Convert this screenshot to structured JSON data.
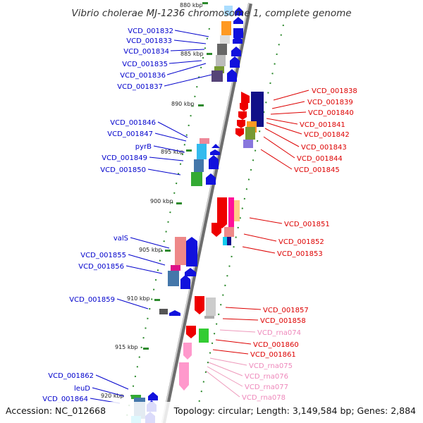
{
  "title": "Vibrio cholerae MJ-1236 chromosome 1, complete genome",
  "footer": {
    "accession": "Accession: NC_012668",
    "topology": "Topology: circular; Length: 3,149,584 bp; Genes: 2,884"
  },
  "colors": {
    "left_label": "#0000cc",
    "right_label": "#dd0000",
    "rna_label": "#ee88bb",
    "backbone": "#888888",
    "tick": "#2d8a2d"
  },
  "kbp_marks": [
    "880 kbp",
    "885 kbp",
    "890 kbp",
    "895 kbp",
    "900 kbp",
    "905 kbp",
    "910 kbp",
    "915 kbp",
    "920 kbp"
  ],
  "left_labels": [
    "VCD_001832",
    "VCD_001833",
    "VCD_001834",
    "VCD_001835",
    "VCD_001836",
    "VCD_001837",
    "VCD_001846",
    "VCD_001847",
    "pyrB",
    "VCD_001849",
    "VCD_001850",
    "valS",
    "VCD_001855",
    "VCD_001856",
    "VCD_001859",
    "VCD_001862",
    "leuD",
    "VCD_001864"
  ],
  "right_labels": [
    "VCD_001838",
    "VCD_001839",
    "VCD_001840",
    "VCD_001841",
    "VCD_001842",
    "VCD_001843",
    "VCD_001844",
    "VCD_001845",
    "VCD_001851",
    "VCD_001852",
    "VCD_001853",
    "VCD_001857",
    "VCD_001858",
    "VCD_rna074",
    "VCD_001860",
    "VCD_001861",
    "VCD_rna075",
    "VCD_rna076",
    "VCD_rna077",
    "VCD_rna078"
  ]
}
